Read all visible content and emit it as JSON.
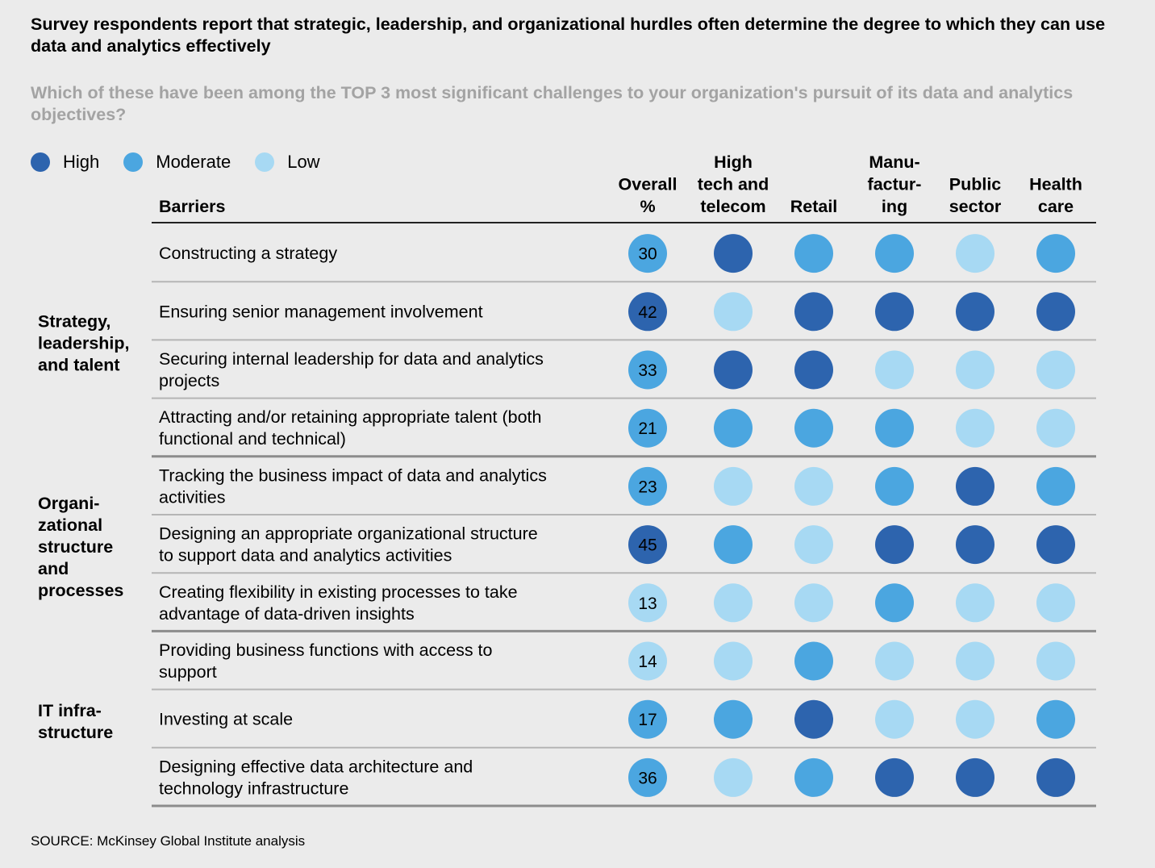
{
  "title": "Survey respondents report that strategic, leadership, and organizational hurdles often determine the degree to which they can use data and analytics effectively",
  "question": "Which of these have been among the TOP 3 most significant challenges to your organization's pursuit of its data and analytics objectives?",
  "source": "SOURCE:  McKinsey Global Institute analysis",
  "legend": [
    {
      "level": "High",
      "label": "High",
      "color": "#2d64ae"
    },
    {
      "level": "Moderate",
      "label": "Moderate",
      "color": "#4ba6e0"
    },
    {
      "level": "Low",
      "label": "Low",
      "color": "#a7d9f3"
    }
  ],
  "colors": {
    "High": "#2d64ae",
    "Moderate": "#4ba6e0",
    "Low": "#a7d9f3",
    "rule_dark": "#222222",
    "rule_light": "#b5b5b5",
    "rule_group": "#8c8c8c",
    "overall_text_on_high": "#ffffff",
    "overall_text_on_other": "#000000"
  },
  "chart_data": {
    "type": "table",
    "title": "Survey respondents report that strategic, leadership, and organizational hurdles often determine the degree to which they can use data and analytics effectively",
    "barrier_header": "Barriers",
    "overall_header": [
      "Overall",
      "%"
    ],
    "columns": [
      {
        "key": "high_tech",
        "label_lines": [
          "High",
          "tech and",
          "telecom"
        ]
      },
      {
        "key": "retail",
        "label_lines": [
          "Retail"
        ]
      },
      {
        "key": "manufacturing",
        "label_lines": [
          "Manu-",
          "factur-",
          "ing"
        ]
      },
      {
        "key": "public_sector",
        "label_lines": [
          "Public",
          "sector"
        ]
      },
      {
        "key": "health_care",
        "label_lines": [
          "Health",
          "care"
        ]
      }
    ],
    "groups": [
      {
        "label_lines": [
          "Strategy,",
          "leadership,",
          "and talent"
        ],
        "rows": [
          0,
          1,
          2,
          3
        ]
      },
      {
        "label_lines": [
          "Organi-",
          "zational",
          "structure",
          "and",
          "processes"
        ],
        "rows": [
          4,
          5,
          6
        ]
      },
      {
        "label_lines": [
          "IT infra-",
          "structure"
        ],
        "rows": [
          7,
          8,
          9
        ]
      }
    ],
    "rows": [
      {
        "barrier_lines": [
          "Constructing a strategy"
        ],
        "overall": 30,
        "overall_level": "Moderate",
        "levels": [
          "High",
          "Moderate",
          "Moderate",
          "Low",
          "Moderate"
        ]
      },
      {
        "barrier_lines": [
          "Ensuring senior management involvement"
        ],
        "overall": 42,
        "overall_level": "High",
        "levels": [
          "Low",
          "High",
          "High",
          "High",
          "High"
        ]
      },
      {
        "barrier_lines": [
          "Securing internal leadership for data and analytics",
          "projects"
        ],
        "overall": 33,
        "overall_level": "Moderate",
        "levels": [
          "High",
          "High",
          "Low",
          "Low",
          "Low"
        ]
      },
      {
        "barrier_lines": [
          "Attracting and/or retaining appropriate talent (both",
          "functional and technical)"
        ],
        "overall": 21,
        "overall_level": "Moderate",
        "levels": [
          "Moderate",
          "Moderate",
          "Moderate",
          "Low",
          "Low"
        ]
      },
      {
        "barrier_lines": [
          "Tracking the business impact of data and analytics",
          "activities"
        ],
        "overall": 23,
        "overall_level": "Moderate",
        "levels": [
          "Low",
          "Low",
          "Moderate",
          "High",
          "Moderate"
        ]
      },
      {
        "barrier_lines": [
          "Designing an appropriate organizational structure",
          "to support data and analytics activities"
        ],
        "overall": 45,
        "overall_level": "High",
        "levels": [
          "Moderate",
          "Low",
          "High",
          "High",
          "High"
        ]
      },
      {
        "barrier_lines": [
          "Creating flexibility in existing processes to take",
          "advantage of data-driven insights"
        ],
        "overall": 13,
        "overall_level": "Low",
        "levels": [
          "Low",
          "Low",
          "Moderate",
          "Low",
          "Low"
        ]
      },
      {
        "barrier_lines": [
          "Providing business functions with access to",
          "support"
        ],
        "overall": 14,
        "overall_level": "Low",
        "levels": [
          "Low",
          "Moderate",
          "Low",
          "Low",
          "Low"
        ]
      },
      {
        "barrier_lines": [
          "Investing at scale"
        ],
        "overall": 17,
        "overall_level": "Moderate",
        "levels": [
          "Moderate",
          "High",
          "Low",
          "Low",
          "Moderate"
        ]
      },
      {
        "barrier_lines": [
          "Designing effective data architecture and",
          "technology infrastructure"
        ],
        "overall": 36,
        "overall_level": "Moderate",
        "levels": [
          "Low",
          "Moderate",
          "High",
          "High",
          "High"
        ]
      }
    ]
  }
}
